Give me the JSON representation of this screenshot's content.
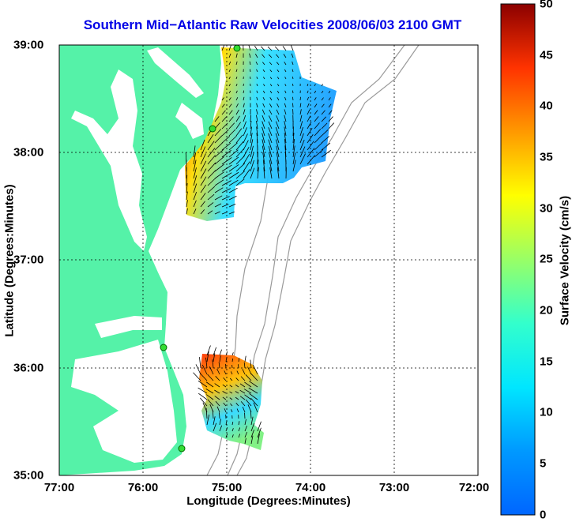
{
  "title": "Southern Mid−Atlantic Raw Velocities 2008/06/03 2100 GMT",
  "xlabel": "Longitude (Degrees:Minutes)",
  "ylabel": "Latitude (Degrees:Minutes)",
  "x_ticks": [
    "77:00",
    "76:00",
    "75:00",
    "74:00",
    "73:00",
    "72:00"
  ],
  "y_ticks": [
    "39:00",
    "38:00",
    "37:00",
    "36:00",
    "35:00"
  ],
  "colorbar": {
    "label": "Surface Velocity (cm/s)",
    "ticks": [
      "50",
      "45",
      "40",
      "35",
      "30",
      "25",
      "20",
      "15",
      "10",
      "5",
      "0"
    ],
    "range": [
      0,
      50
    ]
  },
  "colors": {
    "land": "#55f2a8",
    "water": "#ffffff",
    "title": "#0000e6",
    "bathymetry": "#9a9a9a"
  }
}
